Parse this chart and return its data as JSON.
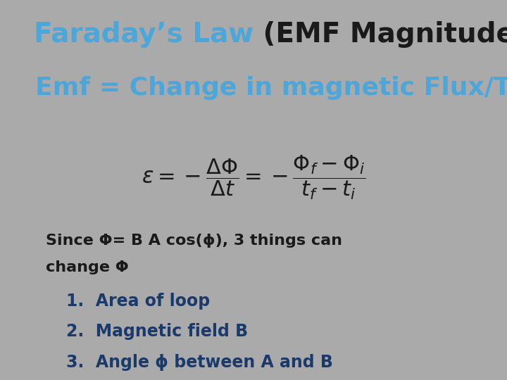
{
  "bg_color": "#aaaaaa",
  "title_faraday_color": "#4da6d9",
  "title_rest_color": "#1a1a1a",
  "subtitle_color": "#4da6d9",
  "body_color": "#1a1a1a",
  "list_color": "#1a3a6b",
  "equation_color": "#1a1a1a",
  "title_faraday": "Faraday’s Law",
  "title_rest": " (EMF Magnitude)",
  "subtitle": "Emf = Change in magnetic Flux/Time",
  "equation": "$\\varepsilon = -\\dfrac{\\Delta\\Phi}{\\Delta t} = -\\dfrac{\\Phi_f - \\Phi_i}{t_f - t_i}$",
  "since_line1": "Since Φ= B A cos(ϕ), 3 things can",
  "since_line2": "change Φ",
  "list_items": [
    "1.  Area of loop",
    "2.  Magnetic field B",
    "3.  Angle ϕ between A and B"
  ],
  "title_fontsize": 28,
  "subtitle_fontsize": 26,
  "equation_fontsize": 22,
  "since_fontsize": 16,
  "list_fontsize": 17
}
